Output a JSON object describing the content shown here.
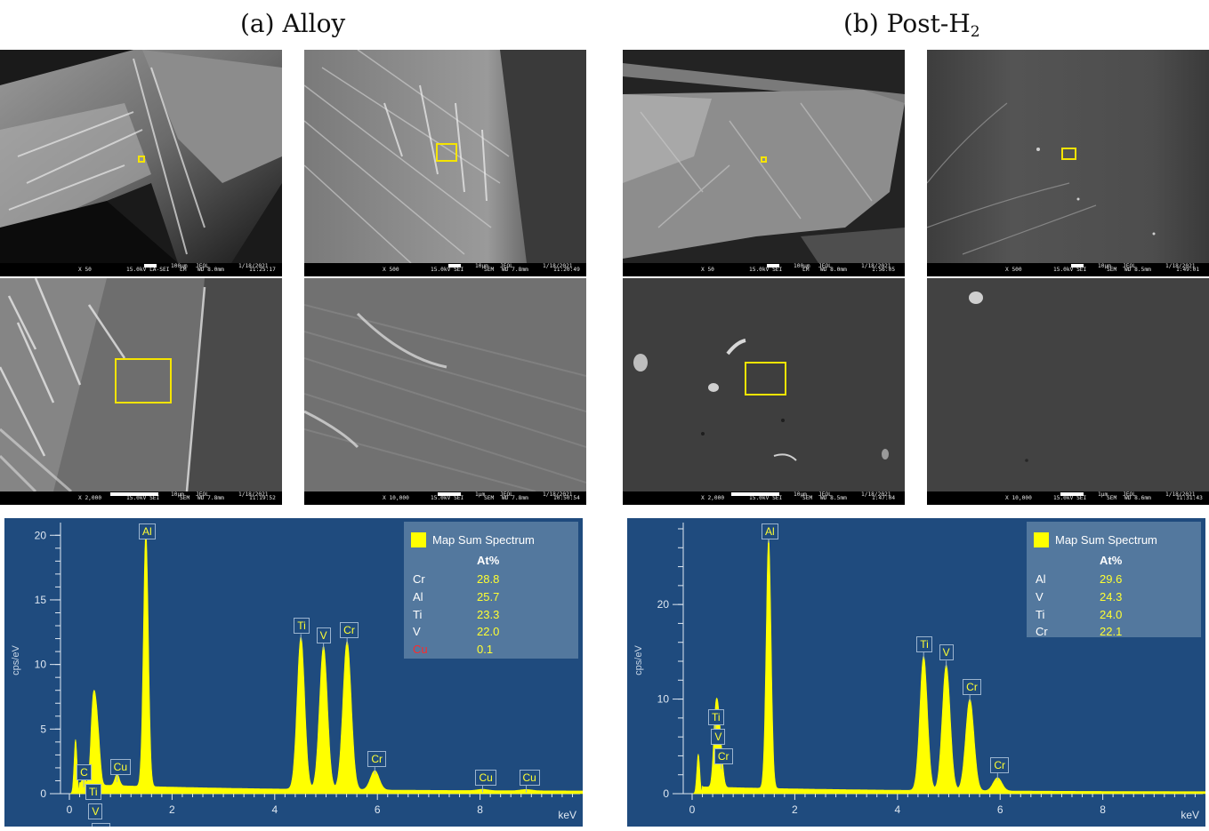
{
  "headings": {
    "a": "(a) Alloy",
    "b_main": "(b) Post-H",
    "b_sub": "2"
  },
  "colors": {
    "roi": "#f5e400",
    "peak_fill": "#ffff00",
    "panel_bg": "#1f4b7e",
    "minor_element": "#ff2a2a"
  },
  "micrographs": {
    "a1": {
      "mag": "X 50",
      "kv": "15.0kV LA-SEI",
      "mode": "LM",
      "scale": "100µm",
      "maker": "JEOL",
      "wd": "WD 8.0mm",
      "date": "1/18/2021",
      "time": "11:25:17"
    },
    "a2": {
      "mag": "X 500",
      "kv": "15.0kV SEI",
      "mode": "SEM",
      "scale": "10µm",
      "maker": "JEOL",
      "wd": "WD 7.8mm",
      "date": "1/18/2021",
      "time": "11:20:49"
    },
    "a3": {
      "mag": "X 2,000",
      "kv": "15.0kV SEI",
      "mode": "SEM",
      "scale": "10µm",
      "maker": "JEOL",
      "wd": "WD 7.8mm",
      "date": "1/18/2021",
      "time": "11:19:52"
    },
    "a4": {
      "mag": "X 10,000",
      "kv": "15.0kV SEI",
      "mode": "SEM",
      "scale": "1µm",
      "maker": "JEOL",
      "wd": "WD 7.8mm",
      "date": "1/18/2021",
      "time": "10:50:54"
    },
    "b1": {
      "mag": "X 50",
      "kv": "15.0kV SEI",
      "mode": "LM",
      "scale": "100µm",
      "maker": "JEOL",
      "wd": "WD 8.0mm",
      "date": "1/18/2021",
      "time": "1:56:05"
    },
    "b2": {
      "mag": "X 500",
      "kv": "15.0kV SEI",
      "mode": "SEM",
      "scale": "10µm",
      "maker": "JEOL",
      "wd": "WD 8.5mm",
      "date": "1/18/2021",
      "time": "1:49:01"
    },
    "b3": {
      "mag": "X 2,000",
      "kv": "15.0kV SEI",
      "mode": "SEM",
      "scale": "10µm",
      "maker": "JEOL",
      "wd": "WD 8.5mm",
      "date": "1/18/2021",
      "time": "1:47:04"
    },
    "b4": {
      "mag": "X 10,000",
      "kv": "15.0kV SEI",
      "mode": "SEM",
      "scale": "1µm",
      "maker": "JEOL",
      "wd": "WD 8.6mm",
      "date": "1/18/2021",
      "time": "11:31:43"
    }
  },
  "spectra": {
    "alloy": {
      "legend_title": "Map Sum Spectrum",
      "header": "At%",
      "rows": [
        {
          "el": "Cr",
          "val": "28.8"
        },
        {
          "el": "Al",
          "val": "25.7"
        },
        {
          "el": "Ti",
          "val": "23.3"
        },
        {
          "el": "V",
          "val": "22.0"
        },
        {
          "el": "Cu",
          "val": "0.1"
        }
      ],
      "ylabel": "cps/eV",
      "xunit": "keV",
      "ymax": 20.5,
      "yticks": [
        "0",
        "5",
        "10",
        "15",
        "20"
      ],
      "xticks": [
        "0",
        "2",
        "4",
        "6",
        "8"
      ],
      "peaks": [
        {
          "label": "C",
          "kev": 0.28,
          "cps": 0.5
        },
        {
          "label": "Ti",
          "kev": 0.45,
          "cps": 5.0
        },
        {
          "label": "V",
          "kev": 0.51,
          "cps": 4.5
        },
        {
          "label": "Cr",
          "kev": 0.57,
          "cps": 2.6
        },
        {
          "label": "Cu",
          "kev": 0.93,
          "cps": 0.9
        },
        {
          "label": "Al",
          "kev": 1.49,
          "cps": 19.8
        },
        {
          "label": "Ti",
          "kev": 4.51,
          "cps": 11.8
        },
        {
          "label": "V",
          "kev": 4.95,
          "cps": 11.1
        },
        {
          "label": "Cr",
          "kev": 5.41,
          "cps": 11.5
        },
        {
          "label": "Cr",
          "kev": 5.95,
          "cps": 1.5
        },
        {
          "label": "Cu",
          "kev": 8.05,
          "cps": 0.1
        },
        {
          "label": "Cu",
          "kev": 8.9,
          "cps": 0.1
        }
      ]
    },
    "post": {
      "legend_title": "Map Sum Spectrum",
      "header": "At%",
      "rows": [
        {
          "el": "Al",
          "val": "29.6"
        },
        {
          "el": "V",
          "val": "24.3"
        },
        {
          "el": "Ti",
          "val": "24.0"
        },
        {
          "el": "Cr",
          "val": "22.1"
        }
      ],
      "ylabel": "cps/eV",
      "xunit": "keV",
      "ymax": 28,
      "yticks": [
        "0",
        "10",
        "20"
      ],
      "xticks": [
        "0",
        "2",
        "4",
        "6",
        "8"
      ],
      "peaks": [
        {
          "label": "Ti",
          "kev": 0.45,
          "cps": 6.5
        },
        {
          "label": "V",
          "kev": 0.51,
          "cps": 5.8
        },
        {
          "label": "Cr",
          "kev": 0.57,
          "cps": 2.6
        },
        {
          "label": "Al",
          "kev": 1.49,
          "cps": 26.5
        },
        {
          "label": "Ti",
          "kev": 4.51,
          "cps": 14.2
        },
        {
          "label": "V",
          "kev": 4.95,
          "cps": 13.3
        },
        {
          "label": "Cr",
          "kev": 5.41,
          "cps": 9.7
        },
        {
          "label": "Cr",
          "kev": 5.95,
          "cps": 1.4
        }
      ]
    }
  }
}
